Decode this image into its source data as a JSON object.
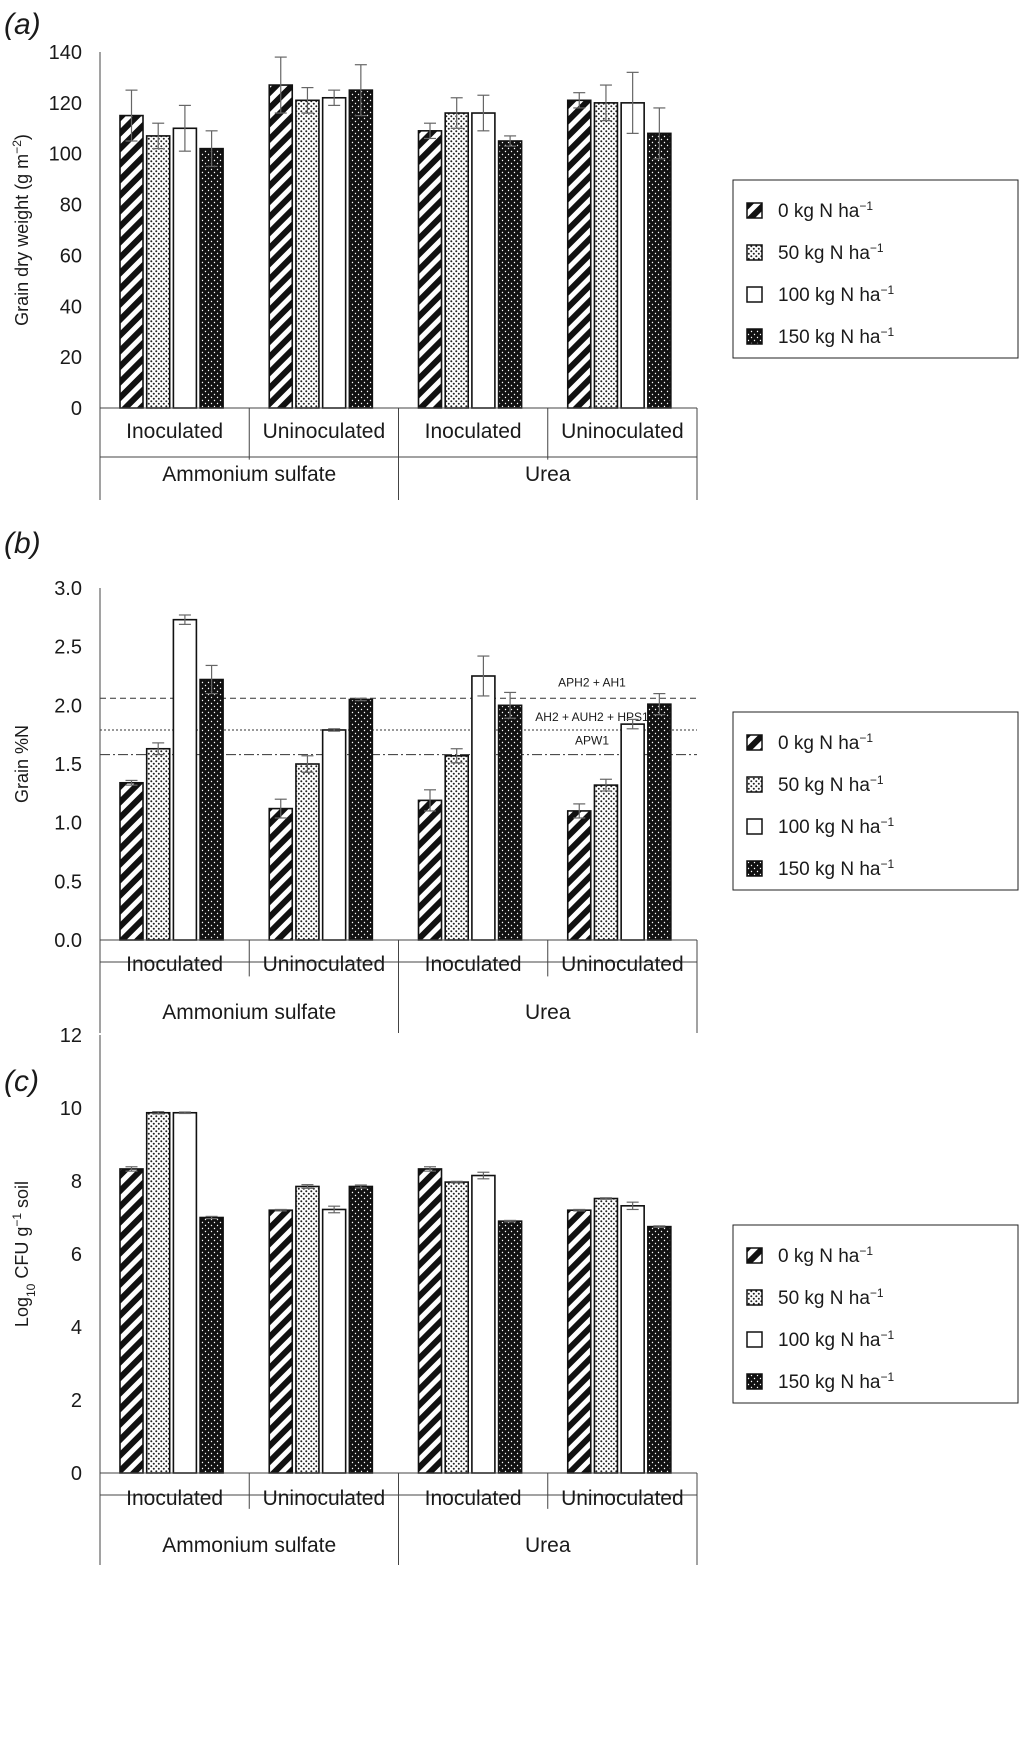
{
  "legend": {
    "entries": [
      {
        "label": "0 kg N ha",
        "sup": "−1",
        "pattern": "diag"
      },
      {
        "label": "50 kg N ha",
        "sup": "−1",
        "pattern": "dots"
      },
      {
        "label": "100 kg N ha",
        "sup": "−1",
        "pattern": "white"
      },
      {
        "label": "150 kg N ha",
        "sup": "−1",
        "pattern": "black"
      }
    ]
  },
  "chart_data": [
    {
      "panel": "(a)",
      "type": "bar",
      "ylabel": "Grain dry weight (g m−2)",
      "ylabel_main": "Grain dry weight (g m",
      "ylabel_sup": "−2",
      "ylabel_tail": ")",
      "ylim": [
        0,
        140
      ],
      "yticks": [
        "0",
        "20",
        "40",
        "60",
        "80",
        "100",
        "120",
        "140"
      ],
      "groups": [
        "Inoculated",
        "Uninoculated",
        "Inoculated",
        "Uninoculated"
      ],
      "supergroups": [
        "Ammonium sulfate",
        "Urea"
      ],
      "series": [
        {
          "name": "0 kg N ha−1",
          "values": [
            115,
            127,
            109,
            121
          ],
          "errors": [
            10,
            11,
            3,
            3
          ]
        },
        {
          "name": "50 kg N ha−1",
          "values": [
            107,
            121,
            116,
            120
          ],
          "errors": [
            5,
            5,
            6,
            7
          ]
        },
        {
          "name": "100 kg N ha−1",
          "values": [
            110,
            122,
            116,
            120
          ],
          "errors": [
            9,
            3,
            7,
            12
          ]
        },
        {
          "name": "150 kg N ha−1",
          "values": [
            102,
            125,
            105,
            108
          ],
          "errors": [
            7,
            10,
            2,
            10
          ]
        }
      ]
    },
    {
      "panel": "(b)",
      "type": "bar",
      "ylabel": "Grain %N",
      "ylim": [
        0,
        3.0
      ],
      "yticks": [
        "0.0",
        "0.5",
        "1.0",
        "1.5",
        "2.0",
        "2.5",
        "3.0"
      ],
      "groups": [
        "Inoculated",
        "Uninoculated",
        "Inoculated",
        "Uninoculated"
      ],
      "supergroups": [
        "Ammonium sulfate",
        "Urea"
      ],
      "series": [
        {
          "name": "0 kg N ha−1",
          "values": [
            1.34,
            1.12,
            1.19,
            1.1
          ],
          "errors": [
            0.02,
            0.08,
            0.09,
            0.06
          ]
        },
        {
          "name": "50 kg N ha−1",
          "values": [
            1.63,
            1.5,
            1.57,
            1.32
          ],
          "errors": [
            0.05,
            0.07,
            0.06,
            0.05
          ]
        },
        {
          "name": "100 kg N ha−1",
          "values": [
            2.73,
            1.79,
            2.25,
            1.84
          ],
          "errors": [
            0.04,
            0.01,
            0.17,
            0.04
          ]
        },
        {
          "name": "150 kg N ha−1",
          "values": [
            2.22,
            2.05,
            2.0,
            2.01
          ],
          "errors": [
            0.12,
            0.01,
            0.11,
            0.09
          ]
        }
      ],
      "reference_lines": [
        {
          "label": "APH2 + AH1",
          "y": 2.06,
          "style": "dashed"
        },
        {
          "label": "AH2 + AUH2 + HPS1",
          "y": 1.79,
          "style": "dotted"
        },
        {
          "label": "APW1",
          "y": 1.58,
          "style": "dashdot"
        }
      ]
    },
    {
      "panel": "(c)",
      "type": "bar",
      "ylabel": "Log10 CFU g−1 soil",
      "ylabel_a": "Log",
      "ylabel_sub": "10",
      "ylabel_b": " CFU g",
      "ylabel_sup": "−1",
      "ylabel_c": " soil",
      "ylim": [
        0,
        12
      ],
      "yticks": [
        "0",
        "2",
        "4",
        "6",
        "8",
        "10",
        "12"
      ],
      "groups": [
        "Inoculated",
        "Uninoculated",
        "Inoculated",
        "Uninoculated"
      ],
      "supergroups": [
        "Ammonium sulfate",
        "Urea"
      ],
      "series": [
        {
          "name": "0 kg N ha−1",
          "values": [
            8.33,
            7.2,
            8.33,
            7.2
          ],
          "errors": [
            0.06,
            0.02,
            0.06,
            0.02
          ]
        },
        {
          "name": "50 kg N ha−1",
          "values": [
            9.87,
            7.85,
            7.97,
            7.52
          ],
          "errors": [
            0.03,
            0.05,
            0.02,
            0.02
          ]
        },
        {
          "name": "100 kg N ha−1",
          "values": [
            9.87,
            7.22,
            8.15,
            7.32
          ],
          "errors": [
            0.02,
            0.09,
            0.09,
            0.1
          ]
        },
        {
          "name": "150 kg N ha−1",
          "values": [
            7.0,
            7.85,
            6.9,
            6.75
          ],
          "errors": [
            0.03,
            0.04,
            0.02,
            0.02
          ]
        }
      ]
    }
  ]
}
